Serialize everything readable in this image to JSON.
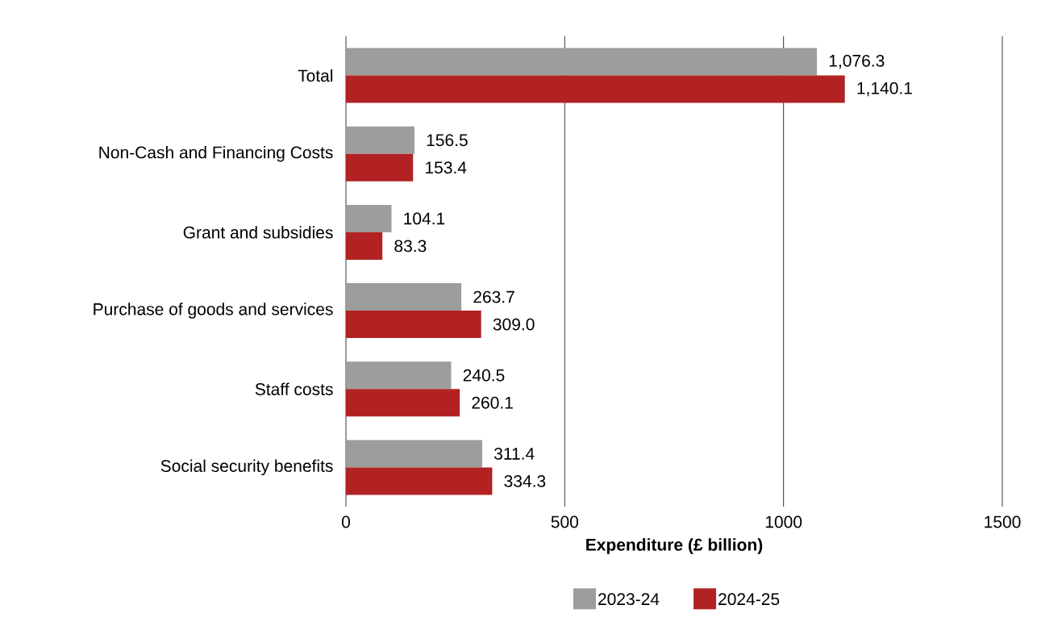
{
  "chart_data": {
    "type": "bar",
    "orientation": "horizontal",
    "xlabel": "Expenditure (£ billion)",
    "categories": [
      "Total",
      "Non-Cash and Financing Costs",
      "Grant and subsidies",
      "Purchase of goods and services",
      "Staff costs",
      "Social security benefits"
    ],
    "series": [
      {
        "name": "2023-24",
        "color": "#9d9d9c",
        "values": [
          1076.3,
          156.5,
          104.1,
          263.7,
          240.5,
          311.4
        ],
        "value_labels": [
          "1,076.3",
          "156.5",
          "104.1",
          "263.7",
          "240.5",
          "311.4"
        ]
      },
      {
        "name": "2024-25",
        "color": "#b22222",
        "values": [
          1140.1,
          153.4,
          83.3,
          309.0,
          260.1,
          334.3
        ],
        "value_labels": [
          "1,140.1",
          "153.4",
          "83.3",
          "309.0",
          "260.1",
          "334.3"
        ]
      }
    ],
    "xlim": [
      0,
      1500
    ],
    "xticks": [
      0,
      500,
      1000,
      1500
    ],
    "grid": "x",
    "legend": "bottom"
  }
}
